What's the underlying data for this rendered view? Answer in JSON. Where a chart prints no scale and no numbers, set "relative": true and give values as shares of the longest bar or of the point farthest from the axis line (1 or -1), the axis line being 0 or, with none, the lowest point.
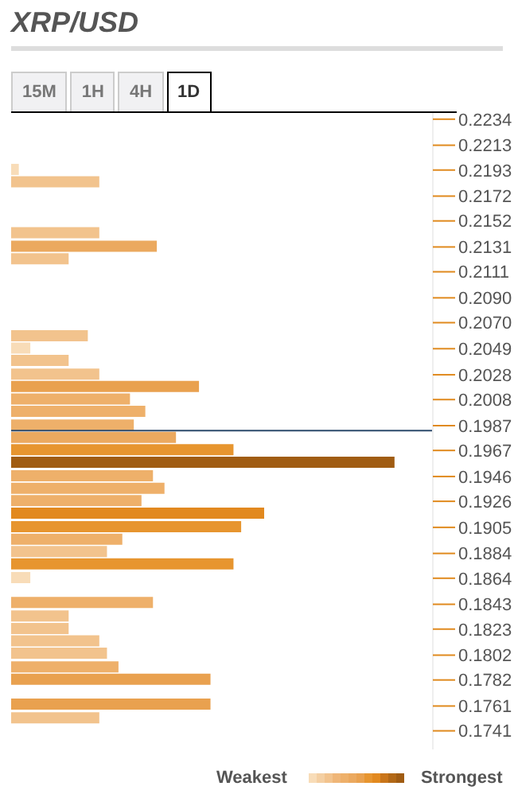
{
  "chart_data": {
    "type": "bar",
    "title": "XRP/USD",
    "orientation": "horizontal",
    "relative": true,
    "x": [
      0.2193,
      0.2183,
      0.2142,
      0.2131,
      0.2121,
      0.2059,
      0.2049,
      0.2039,
      0.2028,
      0.2018,
      0.2008,
      0.1998,
      0.1987,
      0.1977,
      0.1967,
      0.1957,
      0.1946,
      0.1936,
      0.1926,
      0.1916,
      0.1905,
      0.1895,
      0.1885,
      0.1875,
      0.1864,
      0.1844,
      0.1833,
      0.1823,
      0.1813,
      0.1803,
      0.1792,
      0.1782,
      0.1762,
      0.1751
    ],
    "values": [
      0.02,
      0.23,
      0.23,
      0.38,
      0.15,
      0.2,
      0.05,
      0.15,
      0.23,
      0.49,
      0.31,
      0.35,
      0.32,
      0.43,
      0.58,
      1,
      0.37,
      0.4,
      0.34,
      0.66,
      0.6,
      0.29,
      0.25,
      0.58,
      0.05,
      0.37,
      0.15,
      0.15,
      0.23,
      0.25,
      0.28,
      0.52,
      0.52,
      0.23
    ],
    "colors": [
      "#f8dcb8",
      "#f2c38d",
      "#f2c38d",
      "#eba95f",
      "#f2c38d",
      "#f2c38d",
      "#f8dcb8",
      "#f2c38d",
      "#f2c38d",
      "#e9a14f",
      "#eeb06a",
      "#eeb06a",
      "#eeb06a",
      "#eba95f",
      "#e7952f",
      "#a05c12",
      "#eeb06a",
      "#eeb06a",
      "#eeb06a",
      "#e2891f",
      "#e7952f",
      "#eeb06a",
      "#f2c38d",
      "#e7952f",
      "#f8dcb8",
      "#eeb06a",
      "#f2c38d",
      "#f2c38d",
      "#f2c38d",
      "#f2c38d",
      "#eeb06a",
      "#e9a14f",
      "#e9a14f",
      "#f2c38d"
    ],
    "ylim": [
      0.1726,
      0.2239
    ],
    "yticks": [
      0.2234,
      0.2213,
      0.2193,
      0.2172,
      0.2152,
      0.2131,
      0.2111,
      {
        "value": 0.209,
        "label": "0.2090"
      },
      {
        "value": 0.207,
        "label": "0.2070"
      },
      0.2049,
      0.2028,
      0.2008,
      0.1987,
      0.1967,
      0.1946,
      0.1926,
      0.1905,
      0.1884,
      0.1864,
      0.1843,
      0.1823,
      0.1802,
      0.1782,
      0.1761,
      0.1741
    ],
    "ref_lines": [
      {
        "axis": "y",
        "value": 0.1983,
        "color": "#2c4a6b"
      }
    ],
    "annotations": [
      "15M",
      "1H",
      "4H",
      "1D",
      "Weakest",
      "Strongest"
    ]
  }
}
